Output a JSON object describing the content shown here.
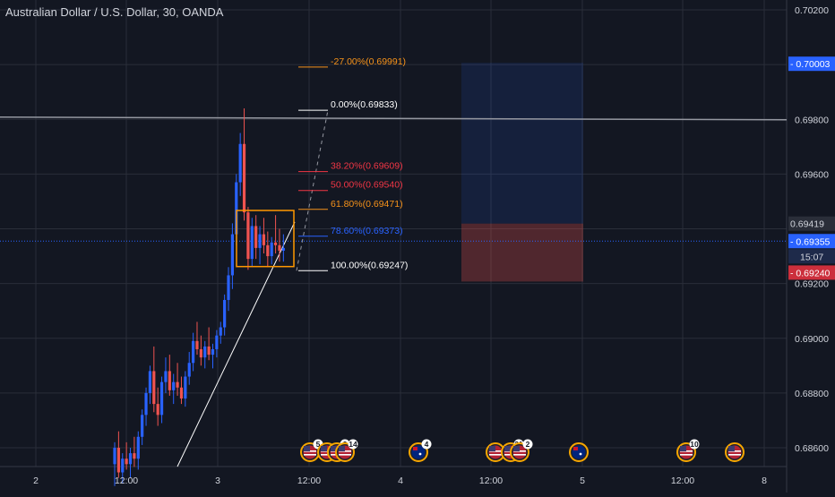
{
  "header": {
    "title": "Australian Dollar / U.S. Dollar, 30, OANDA"
  },
  "colors": {
    "background": "#131722",
    "grid": "#2a2e39",
    "text": "#d1d4dc",
    "bull": "#2962ff",
    "bear": "#ef5350",
    "fib_orange": "#f7931a",
    "fib_red": "#f23645",
    "fib_blue": "#2962ff",
    "fib_white": "#ffffff",
    "box": "#ff9800",
    "price_line": "#2962ff",
    "target_zone": "#1c2a45",
    "stop_zone": "#5b1c22"
  },
  "chart_data": {
    "type": "candlestick",
    "symbol": "AUDUSD",
    "timeframe": "30",
    "source": "OANDA",
    "y_range": [
      0.6849,
      0.7021
    ],
    "y_ticks": [
      "0.70200",
      "0.69800",
      "0.69600",
      "0.69200",
      "0.69000",
      "0.68800",
      "0.68600"
    ],
    "x_tick_labels": [
      "2",
      "12:00",
      "3",
      "12:00",
      "4",
      "12:00",
      "5",
      "12:00",
      "8"
    ],
    "price_labels": [
      {
        "value": 0.70003,
        "text": "0.70003",
        "style": "blue"
      },
      {
        "value": 0.69419,
        "text": "0.69419",
        "style": "dark"
      },
      {
        "value": 0.69355,
        "text": "0.69355",
        "style": "blue"
      },
      {
        "value": 0.69355,
        "text": "15:07",
        "style": "darkblue"
      },
      {
        "value": 0.6924,
        "text": "0.69240",
        "style": "red"
      }
    ],
    "horizontal_line": 0.69808,
    "fibonacci_levels": [
      {
        "label": "-27.00%(0.69991)",
        "price": 0.69991,
        "color": "orange"
      },
      {
        "label": "0.00%(0.69833)",
        "price": 0.69833,
        "color": "white"
      },
      {
        "label": "38.20%(0.69609)",
        "price": 0.69609,
        "color": "red"
      },
      {
        "label": "50.00%(0.69540)",
        "price": 0.6954,
        "color": "red"
      },
      {
        "label": "61.80%(0.69471)",
        "price": 0.69471,
        "color": "orange"
      },
      {
        "label": "78.60%(0.69373)",
        "price": 0.69373,
        "color": "blue"
      },
      {
        "label": "100.00%(0.69247)",
        "price": 0.69247,
        "color": "white"
      }
    ],
    "position_tool": {
      "target_top": 0.7,
      "entry": 0.69419,
      "stop": 0.6924
    },
    "consolidation_box": {
      "top": 0.69467,
      "bottom": 0.69262
    },
    "candles": [
      [
        0.6854,
        0.6862,
        0.6846,
        0.686
      ],
      [
        0.686,
        0.6866,
        0.6849,
        0.6851
      ],
      [
        0.6851,
        0.6858,
        0.6847,
        0.6856
      ],
      [
        0.6856,
        0.6862,
        0.6852,
        0.6854
      ],
      [
        0.6854,
        0.686,
        0.6849,
        0.6858
      ],
      [
        0.6858,
        0.6864,
        0.6853,
        0.6856
      ],
      [
        0.6856,
        0.6866,
        0.6852,
        0.6864
      ],
      [
        0.6864,
        0.6874,
        0.6861,
        0.6872
      ],
      [
        0.6872,
        0.6882,
        0.6868,
        0.688
      ],
      [
        0.688,
        0.689,
        0.6876,
        0.6888
      ],
      [
        0.6888,
        0.6897,
        0.6873,
        0.6876
      ],
      [
        0.6876,
        0.6882,
        0.6868,
        0.6872
      ],
      [
        0.6872,
        0.6886,
        0.6869,
        0.6884
      ],
      [
        0.6884,
        0.6893,
        0.688,
        0.6888
      ],
      [
        0.6888,
        0.6894,
        0.6879,
        0.6881
      ],
      [
        0.6881,
        0.6887,
        0.6876,
        0.6884
      ],
      [
        0.6884,
        0.6891,
        0.6879,
        0.6882
      ],
      [
        0.6882,
        0.6886,
        0.6876,
        0.6878
      ],
      [
        0.6878,
        0.6888,
        0.6875,
        0.6886
      ],
      [
        0.6886,
        0.6895,
        0.6883,
        0.6891
      ],
      [
        0.6891,
        0.6902,
        0.6888,
        0.6899
      ],
      [
        0.6899,
        0.6906,
        0.6894,
        0.6896
      ],
      [
        0.6896,
        0.6901,
        0.689,
        0.6893
      ],
      [
        0.6893,
        0.6899,
        0.6889,
        0.6897
      ],
      [
        0.6897,
        0.6904,
        0.6892,
        0.6894
      ],
      [
        0.6894,
        0.6898,
        0.6889,
        0.6896
      ],
      [
        0.6896,
        0.6903,
        0.6893,
        0.6901
      ],
      [
        0.6901,
        0.6906,
        0.6898,
        0.6904
      ],
      [
        0.6904,
        0.6916,
        0.6901,
        0.6914
      ],
      [
        0.6914,
        0.6926,
        0.691,
        0.6923
      ],
      [
        0.6923,
        0.6942,
        0.6918,
        0.6938
      ],
      [
        0.6938,
        0.696,
        0.6934,
        0.6957
      ],
      [
        0.6957,
        0.6975,
        0.6952,
        0.6971
      ],
      [
        0.6971,
        0.6984,
        0.6943,
        0.6946
      ],
      [
        0.6946,
        0.6948,
        0.6925,
        0.6929
      ],
      [
        0.6929,
        0.6944,
        0.6926,
        0.6941
      ],
      [
        0.6941,
        0.6945,
        0.6929,
        0.6933
      ],
      [
        0.6933,
        0.6941,
        0.6927,
        0.6938
      ],
      [
        0.6938,
        0.6944,
        0.6931,
        0.6934
      ],
      [
        0.6934,
        0.6939,
        0.6926,
        0.693
      ],
      [
        0.693,
        0.6937,
        0.6927,
        0.6935
      ],
      [
        0.6935,
        0.6945,
        0.6931,
        0.6934
      ],
      [
        0.6934,
        0.694,
        0.6928,
        0.6932
      ],
      [
        0.6932,
        0.6938,
        0.6928,
        0.6933
      ]
    ],
    "event_markers": [
      {
        "flag": "us",
        "badge": "5"
      },
      {
        "flag": "us",
        "badge": ""
      },
      {
        "flag": "us",
        "badge": "2"
      },
      {
        "flag": "us",
        "badge": "14"
      },
      {
        "flag": "au",
        "badge": "4"
      },
      {
        "flag": "us",
        "badge": ""
      },
      {
        "flag": "us",
        "badge": "31"
      },
      {
        "flag": "us",
        "badge": "2"
      },
      {
        "flag": "au",
        "badge": ""
      },
      {
        "flag": "us",
        "badge": "10"
      },
      {
        "flag": "us",
        "badge": ""
      }
    ]
  }
}
